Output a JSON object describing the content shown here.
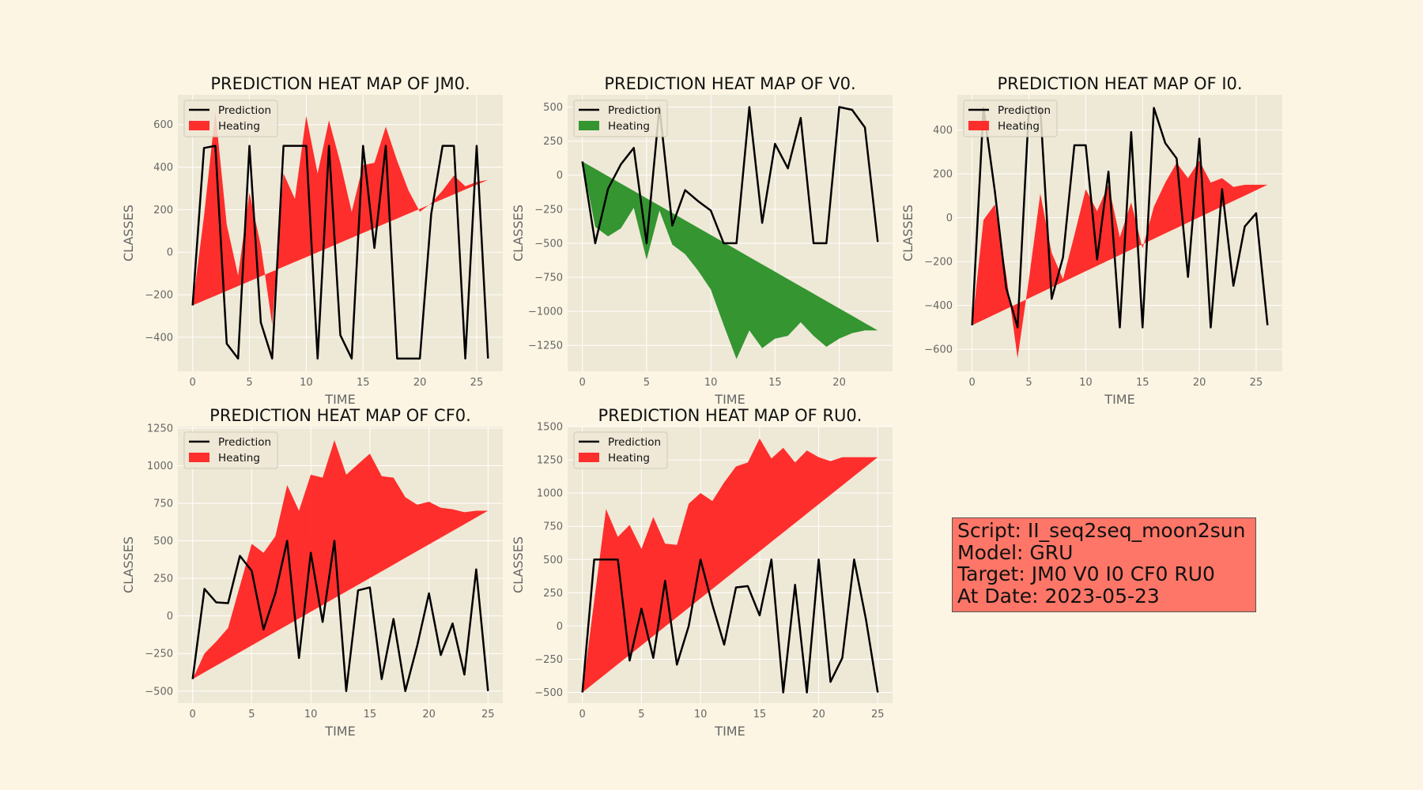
{
  "colors": {
    "background": "#fcf5e3",
    "plot_bg": "#eee8d6",
    "grid": "#ffffff",
    "red": "#ff1a1a",
    "green": "#1f8c1f",
    "line": "#000000",
    "info_bg": "#fe7667"
  },
  "info": {
    "script": "Script: II_seq2seq_moon2sun",
    "model": "Model: GRU",
    "target": "Target: JM0 V0 I0 CF0 RU0",
    "date": "At Date: 2023-05-23"
  },
  "chart_data": [
    {
      "type": "line",
      "title": "PREDICTION HEAT MAP OF JM0.",
      "xlabel": "TIME",
      "ylabel": "CLASSES",
      "xlim": [
        -1.3,
        27.3
      ],
      "ylim": [
        -560,
        740
      ],
      "xticks": [
        0,
        5,
        10,
        15,
        20,
        25
      ],
      "yticks": [
        -400,
        -200,
        0,
        200,
        400,
        600
      ],
      "legend": [
        "Prediction",
        "Heating"
      ],
      "heat_color": "red",
      "prediction": [
        -250,
        490,
        500,
        -430,
        -500,
        500,
        -330,
        -500,
        500,
        500,
        500,
        -500,
        500,
        -390,
        -500,
        500,
        20,
        500,
        -500,
        -500,
        -500,
        180,
        500,
        500,
        -500,
        500,
        -500
      ],
      "heating": [
        -250,
        170,
        660,
        130,
        -110,
        280,
        30,
        -340,
        370,
        250,
        640,
        370,
        620,
        420,
        190,
        410,
        420,
        590,
        430,
        290,
        190,
        230,
        290,
        360,
        310,
        330,
        340
      ],
      "baseline": [
        -250,
        340
      ]
    },
    {
      "type": "line",
      "title": "PREDICTION HEAT MAP OF V0.",
      "xlabel": "TIME",
      "ylabel": "CLASSES",
      "xlim": [
        -1.15,
        24.15
      ],
      "ylim": [
        -1440,
        590
      ],
      "xticks": [
        0,
        5,
        10,
        15,
        20
      ],
      "yticks": [
        -1250,
        -1000,
        -750,
        -500,
        -250,
        0,
        250,
        500
      ],
      "legend": [
        "Prediction",
        "Heating"
      ],
      "heat_color": "green",
      "prediction": [
        100,
        -500,
        -100,
        80,
        200,
        -500,
        500,
        -370,
        -110,
        -190,
        -260,
        -500,
        -500,
        500,
        -350,
        230,
        50,
        420,
        -500,
        -500,
        500,
        480,
        350,
        -490
      ],
      "heating": [
        100,
        -380,
        -450,
        -390,
        -240,
        -620,
        -260,
        -510,
        -580,
        -700,
        -840,
        -1100,
        -1350,
        -1140,
        -1270,
        -1200,
        -1180,
        -1080,
        -1180,
        -1260,
        -1200,
        -1160,
        -1140,
        -1140
      ],
      "baseline": [
        100,
        -1140
      ]
    },
    {
      "type": "line",
      "title": "PREDICTION HEAT MAP OF I0.",
      "xlabel": "TIME",
      "ylabel": "CLASSES",
      "xlim": [
        -1.3,
        27.3
      ],
      "ylim": [
        -700,
        560
      ],
      "xticks": [
        0,
        5,
        10,
        15,
        20,
        25
      ],
      "yticks": [
        -600,
        -400,
        -200,
        0,
        200,
        400
      ],
      "legend": [
        "Prediction",
        "Heating"
      ],
      "heat_color": "red",
      "prediction": [
        -490,
        500,
        120,
        -320,
        -500,
        500,
        500,
        -370,
        -180,
        330,
        330,
        -190,
        210,
        -500,
        390,
        -500,
        500,
        340,
        270,
        -270,
        360,
        -500,
        130,
        -310,
        -40,
        20,
        -490
      ],
      "heating": [
        -490,
        -10,
        60,
        -260,
        -640,
        -280,
        110,
        -160,
        -280,
        -80,
        130,
        30,
        150,
        -90,
        70,
        -140,
        50,
        160,
        250,
        180,
        260,
        160,
        180,
        140,
        150,
        150,
        150
      ],
      "baseline": [
        -490,
        150
      ]
    },
    {
      "type": "line",
      "title": "PREDICTION HEAT MAP OF CF0.",
      "xlabel": "TIME",
      "ylabel": "CLASSES",
      "xlim": [
        -1.25,
        26.25
      ],
      "ylim": [
        -580,
        1260
      ],
      "xticks": [
        0,
        5,
        10,
        15,
        20,
        25
      ],
      "yticks": [
        -500,
        -250,
        0,
        250,
        500,
        750,
        1000,
        1250
      ],
      "legend": [
        "Prediction",
        "Heating"
      ],
      "heat_color": "red",
      "prediction": [
        -420,
        180,
        90,
        85,
        400,
        300,
        -90,
        150,
        500,
        -280,
        420,
        -40,
        500,
        -500,
        170,
        190,
        -420,
        -20,
        -500,
        -200,
        150,
        -260,
        -50,
        -390,
        310,
        -500
      ],
      "heating": [
        -420,
        -250,
        -170,
        -80,
        200,
        480,
        420,
        530,
        870,
        700,
        940,
        920,
        1170,
        940,
        1010,
        1080,
        930,
        920,
        790,
        740,
        760,
        720,
        710,
        690,
        700,
        700
      ],
      "baseline": [
        -420,
        700
      ]
    },
    {
      "type": "line",
      "title": "PREDICTION HEAT MAP OF RU0.",
      "xlabel": "TIME",
      "ylabel": "CLASSES",
      "xlim": [
        -1.25,
        26.25
      ],
      "ylim": [
        -580,
        1500
      ],
      "xticks": [
        0,
        5,
        10,
        15,
        20,
        25
      ],
      "yticks": [
        -500,
        -250,
        0,
        250,
        500,
        750,
        1000,
        1250,
        1500
      ],
      "legend": [
        "Prediction",
        "Heating"
      ],
      "heat_color": "red",
      "prediction": [
        -500,
        500,
        500,
        500,
        -260,
        130,
        -240,
        340,
        -290,
        0,
        500,
        160,
        -140,
        290,
        300,
        80,
        500,
        -500,
        310,
        -500,
        500,
        -420,
        -240,
        500,
        50,
        -500
      ],
      "heating": [
        -500,
        190,
        880,
        670,
        760,
        580,
        820,
        620,
        610,
        920,
        1000,
        940,
        1080,
        1200,
        1230,
        1410,
        1260,
        1340,
        1230,
        1320,
        1270,
        1240,
        1270,
        1270,
        1270,
        1270
      ],
      "baseline": [
        -500,
        1270
      ]
    }
  ]
}
